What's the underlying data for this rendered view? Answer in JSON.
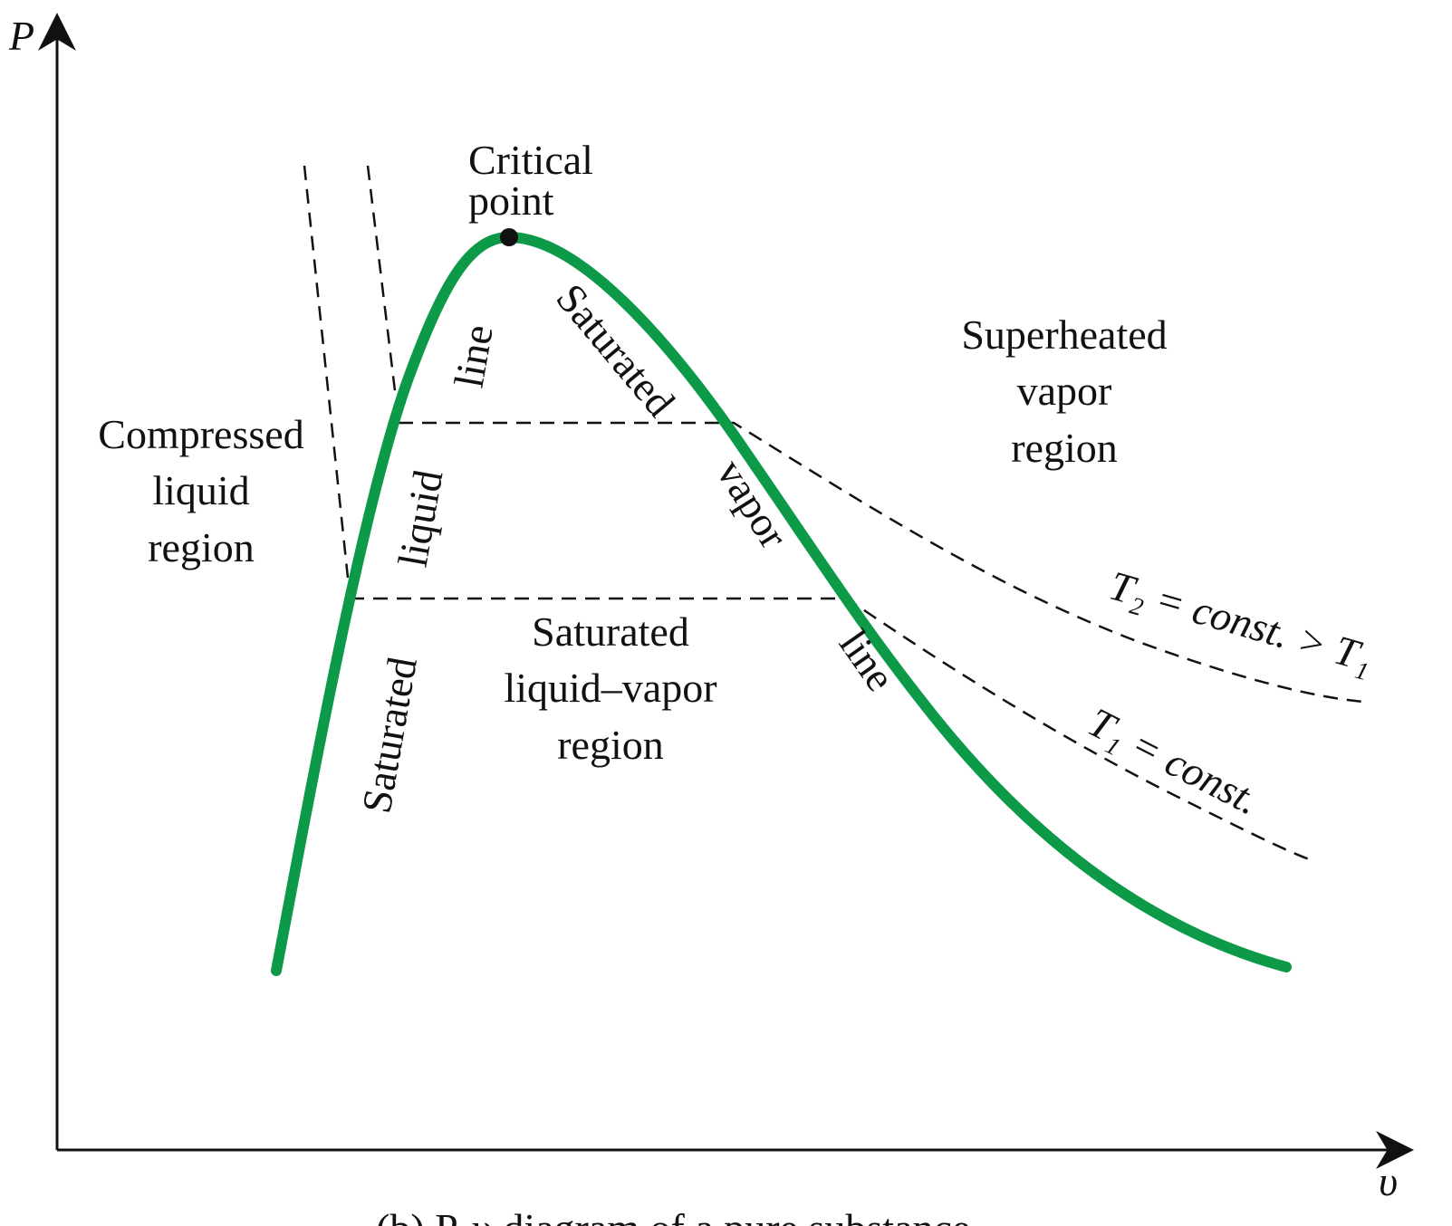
{
  "axes": {
    "y_label": "P",
    "x_label": "υ"
  },
  "critical_point": {
    "label_line1": "Critical",
    "label_line2": "point"
  },
  "saturated_liquid_line": {
    "words": [
      "Saturated",
      "liquid",
      "line"
    ]
  },
  "saturated_vapor_line": {
    "words": [
      "Saturated",
      "vapor",
      "line"
    ]
  },
  "regions": {
    "compressed_liquid": [
      "Compressed",
      "liquid",
      "region"
    ],
    "superheated_vapor": [
      "Superheated",
      "vapor",
      "region"
    ],
    "saturated_mixture": [
      "Saturated",
      "liquid–vapor",
      "region"
    ]
  },
  "isotherms": {
    "t2": "T₂ = const. > T₁",
    "t1": "T₁ = const."
  },
  "caption": "(b) P-υ diagram of a pure substance"
}
